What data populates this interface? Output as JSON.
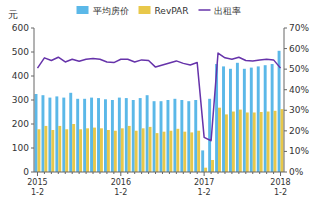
{
  "chart_data": {
    "type": "bar",
    "ylabel": "元",
    "categories": [
      "2015\n1-2",
      null,
      null,
      null,
      null,
      null,
      null,
      null,
      null,
      null,
      null,
      null,
      "2016\n1-2",
      null,
      null,
      null,
      null,
      null,
      null,
      null,
      null,
      null,
      null,
      null,
      "2017\n1-2",
      null,
      null,
      null,
      null,
      null,
      null,
      null,
      null,
      null,
      null,
      "2018\n1-2"
    ],
    "series": [
      {
        "name": "平均房价",
        "type": "bar",
        "color": "#5BB8E8",
        "values": [
          325,
          320,
          310,
          315,
          310,
          330,
          305,
          305,
          310,
          308,
          303,
          300,
          310,
          308,
          300,
          308,
          320,
          295,
          295,
          300,
          305,
          300,
          295,
          300,
          90,
          305,
          450,
          440,
          430,
          455,
          430,
          435,
          440,
          445,
          450,
          505
        ]
      },
      {
        "name": "RevPAR",
        "type": "bar",
        "color": "#E8C84A",
        "values": [
          178,
          192,
          175,
          192,
          178,
          200,
          178,
          182,
          185,
          182,
          175,
          172,
          182,
          192,
          172,
          182,
          188,
          162,
          168,
          172,
          180,
          168,
          165,
          172,
          18,
          50,
          268,
          240,
          252,
          260,
          248,
          248,
          250,
          252,
          255,
          262
        ]
      },
      {
        "name": "出租率",
        "type": "line",
        "axis": "y2",
        "color": "#6633AA",
        "values": [
          0.505,
          0.555,
          0.542,
          0.558,
          0.535,
          0.548,
          0.538,
          0.548,
          0.552,
          0.548,
          0.535,
          0.532,
          0.548,
          0.548,
          0.535,
          0.545,
          0.542,
          0.51,
          0.52,
          0.53,
          0.54,
          0.528,
          0.52,
          0.532,
          0.168,
          0.152,
          0.578,
          0.555,
          0.548,
          0.558,
          0.542,
          0.54,
          0.545,
          0.548,
          0.545,
          0.505
        ]
      }
    ],
    "ylim": [
      0,
      600
    ],
    "yticks": [
      0,
      100,
      200,
      300,
      400,
      500,
      600
    ],
    "y2lim": [
      0,
      0.7
    ],
    "y2ticks": [
      {
        "value": 0.0,
        "label": "0%"
      },
      {
        "value": 0.1,
        "label": "10%"
      },
      {
        "value": 0.2,
        "label": "20%"
      },
      {
        "value": 0.3,
        "label": "30%"
      },
      {
        "value": 0.4,
        "label": "40%"
      },
      {
        "value": 0.5,
        "label": "50%"
      },
      {
        "value": 0.6,
        "label": "60%"
      },
      {
        "value": 0.7,
        "label": "70%"
      }
    ],
    "legend": "top",
    "grid": false
  }
}
